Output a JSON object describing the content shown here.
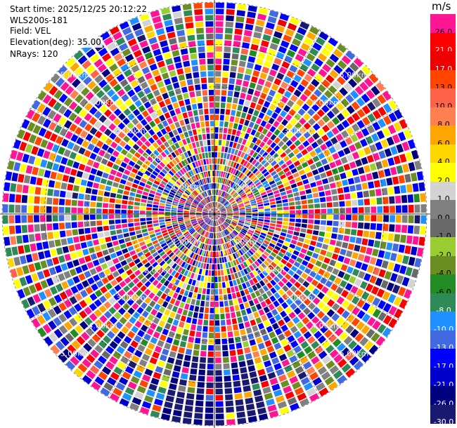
{
  "header": {
    "start_time": "Start time: 2025/12/25 20:12:22",
    "instrument": "WLS200s-181",
    "field": "Field: VEL",
    "elevation": "Elevation(deg): 35.00",
    "nrays": "NRays: 120"
  },
  "colorbar": {
    "unit": "m/s",
    "levels": [
      {
        "label": "26.0",
        "color": "#ff1493"
      },
      {
        "label": "21.0",
        "color": "#ff0000"
      },
      {
        "label": "17.0",
        "color": "#ee0000"
      },
      {
        "label": "13.0",
        "color": "#ff4500"
      },
      {
        "label": "10.0",
        "color": "#ff6347"
      },
      {
        "label": "8.0",
        "color": "#ff7f50"
      },
      {
        "label": "6.0",
        "color": "#ffa500"
      },
      {
        "label": "4.0",
        "color": "#ffd700"
      },
      {
        "label": "2.0",
        "color": "#ffff00"
      },
      {
        "label": "1.0",
        "color": "#d3d3d3"
      },
      {
        "label": "0.0",
        "color": "#808080"
      },
      {
        "label": "-1.0",
        "color": "#696969"
      },
      {
        "label": "-2.0",
        "color": "#9acd32"
      },
      {
        "label": "-4.0",
        "color": "#6b8e23"
      },
      {
        "label": "-6.0",
        "color": "#228b22"
      },
      {
        "label": "-8.0",
        "color": "#2e8b57"
      },
      {
        "label": "-10.0",
        "color": "#1e90ff"
      },
      {
        "label": "-13.0",
        "color": "#4169e1"
      },
      {
        "label": "-17.0",
        "color": "#0000ff"
      },
      {
        "label": "-21.0",
        "color": "#0000cd"
      },
      {
        "label": "-26.0",
        "color": "#000080"
      },
      {
        "label": "-30.0",
        "color": "#191970"
      }
    ]
  },
  "chart_data": {
    "type": "heatmap",
    "projection": "polar-ppi",
    "field": "VEL",
    "n_rays": 120,
    "range_rings_km": [
      1.0,
      2.0,
      3.0,
      4.0,
      5.0
    ],
    "ring_labels": [
      "1.00km",
      "2.00km",
      "3.00km",
      "4.00km",
      "5.00km"
    ],
    "max_range_km": 5.0,
    "value_range": [
      -30.0,
      30.0
    ],
    "colors": [
      "#ff1493",
      "#ff0000",
      "#ee0000",
      "#ff4500",
      "#ff6347",
      "#ff7f50",
      "#ffa500",
      "#ffd700",
      "#ffff00",
      "#d3d3d3",
      "#808080",
      "#696969",
      "#9acd32",
      "#6b8e23",
      "#228b22",
      "#2e8b57",
      "#1e90ff",
      "#4169e1",
      "#0000ff",
      "#0000cd",
      "#000080",
      "#191970"
    ],
    "dominant_colors": [
      "#ff1493",
      "#ff1493",
      "#ff1493",
      "#0000ff",
      "#0000ff",
      "#0000cd",
      "#ffff00",
      "#ff0000",
      "#6b8e23",
      "#1e90ff",
      "#ffa500",
      "#000080",
      "#ff4500",
      "#808080",
      "#2e8b57",
      "#4169e1"
    ],
    "grid": true
  }
}
